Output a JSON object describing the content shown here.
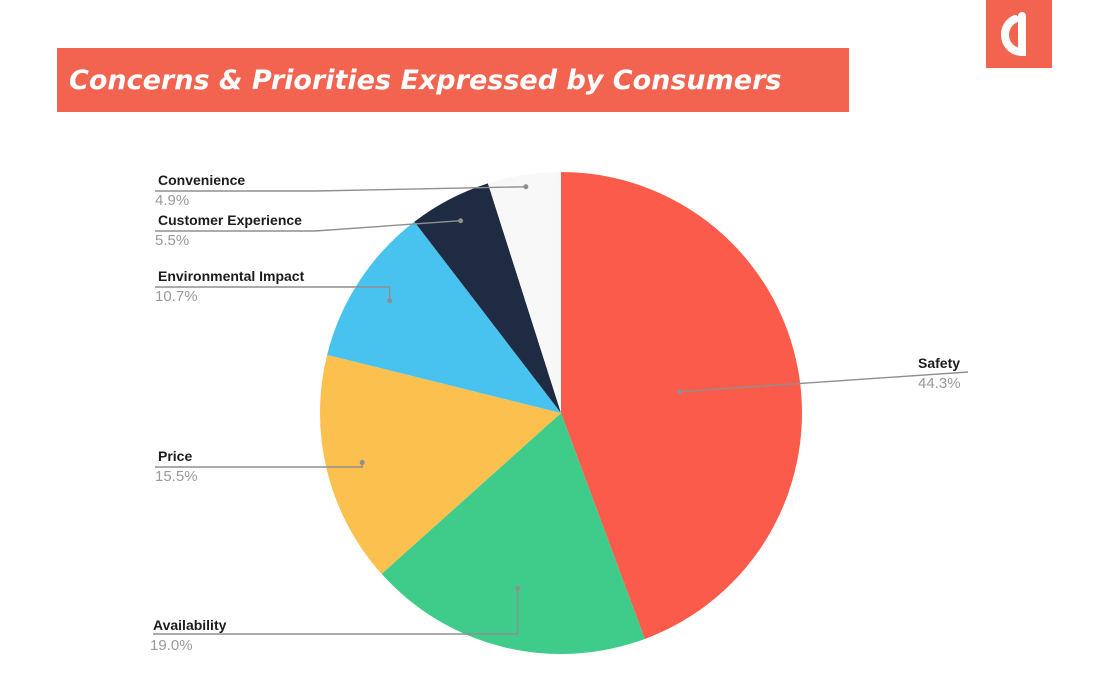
{
  "brand": {
    "logo_icon": "brand-logo-icon",
    "accent_color": "#f26450"
  },
  "chart_data": {
    "type": "pie",
    "title": "Concerns & Priorities Expressed by Consumers",
    "slices": [
      {
        "label": "Safety",
        "value": 44.3,
        "value_label": "44.3%",
        "color": "#fb5b4b"
      },
      {
        "label": "Availability",
        "value": 19.0,
        "value_label": "19.0%",
        "color": "#3fcc8b"
      },
      {
        "label": "Price",
        "value": 15.5,
        "value_label": "15.5%",
        "color": "#fcc04f"
      },
      {
        "label": "Environmental Impact",
        "value": 10.7,
        "value_label": "10.7%",
        "color": "#48c3ef"
      },
      {
        "label": "Customer Experience",
        "value": 5.5,
        "value_label": "5.5%",
        "color": "#1e2b43"
      },
      {
        "label": "Convenience",
        "value": 4.9,
        "value_label": "4.9%",
        "color": "#f8f8f8"
      }
    ],
    "start_angle_deg": 0,
    "direction": "clockwise",
    "legend": "none",
    "label_style": "leader-lines"
  }
}
